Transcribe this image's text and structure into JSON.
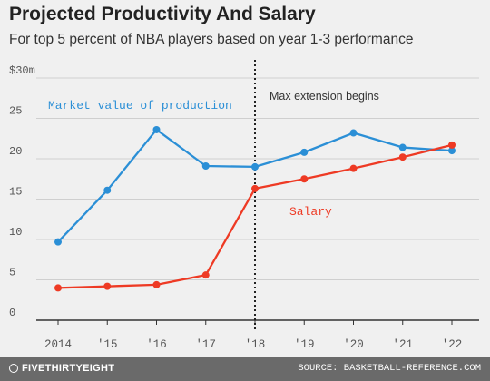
{
  "title": "Projected Productivity And Salary",
  "subtitle": "For top 5 percent of NBA players based on year 1-3 performance",
  "footer": {
    "logo": "FIVETHIRTYEIGHT",
    "source": "SOURCE: BASKETBALL-REFERENCE.COM"
  },
  "colors": {
    "market_value": "#2b8fd6",
    "salary": "#ee3a24",
    "grid": "#cfcfcf",
    "axis": "#333333",
    "tick_label": "#555555"
  },
  "chart_data": {
    "type": "line",
    "x": [
      "2014",
      "'15",
      "'16",
      "'17",
      "'18",
      "'19",
      "'20",
      "'21",
      "'22"
    ],
    "y_ticks": [
      "0",
      "5",
      "10",
      "15",
      "20",
      "25",
      "$30m"
    ],
    "y_tick_values": [
      0,
      5,
      10,
      15,
      20,
      25,
      30
    ],
    "ylim": [
      0,
      30
    ],
    "grid": true,
    "series": [
      {
        "name": "Market value of production",
        "values": [
          9.7,
          16.1,
          23.6,
          19.1,
          19.0,
          20.8,
          23.2,
          21.4,
          21.0
        ]
      },
      {
        "name": "Salary",
        "values": [
          4.0,
          4.2,
          4.4,
          5.6,
          16.3,
          17.5,
          18.8,
          20.2,
          21.7
        ]
      }
    ],
    "annotation": {
      "text": "Max extension begins",
      "at_x": "'18"
    }
  }
}
